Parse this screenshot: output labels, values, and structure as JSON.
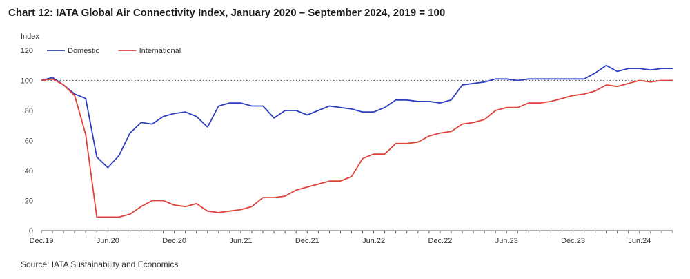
{
  "title": "Chart 12: IATA Global Air Connectivity Index, January 2020 – September 2024, 2019 = 100",
  "source": "Source: IATA Sustainability and Economics",
  "chart_data": {
    "type": "line",
    "ylabel": "Index",
    "ylim": [
      0,
      120
    ],
    "yticks": [
      0,
      20,
      40,
      60,
      80,
      100,
      120
    ],
    "x_range": [
      "Dec.19",
      "Sep.24"
    ],
    "xtick_labels": [
      "Dec.19",
      "Jun.20",
      "Dec.20",
      "Jun.21",
      "Dec.21",
      "Jun.22",
      "Dec.22",
      "Jun.23",
      "Dec.23",
      "Jun.24"
    ],
    "reference_line": {
      "value": 100,
      "style": "dotted"
    },
    "legend_position": "top-left",
    "grid": false,
    "x": [
      "Dec.19",
      "Jan.20",
      "Feb.20",
      "Mar.20",
      "Apr.20",
      "May.20",
      "Jun.20",
      "Jul.20",
      "Aug.20",
      "Sep.20",
      "Oct.20",
      "Nov.20",
      "Dec.20",
      "Jan.21",
      "Feb.21",
      "Mar.21",
      "Apr.21",
      "May.21",
      "Jun.21",
      "Jul.21",
      "Aug.21",
      "Sep.21",
      "Oct.21",
      "Nov.21",
      "Dec.21",
      "Jan.22",
      "Feb.22",
      "Mar.22",
      "Apr.22",
      "May.22",
      "Jun.22",
      "Jul.22",
      "Aug.22",
      "Sep.22",
      "Oct.22",
      "Nov.22",
      "Dec.22",
      "Jan.23",
      "Feb.23",
      "Mar.23",
      "Apr.23",
      "May.23",
      "Jun.23",
      "Jul.23",
      "Aug.23",
      "Sep.23",
      "Oct.23",
      "Nov.23",
      "Dec.23",
      "Jan.24",
      "Feb.24",
      "Mar.24",
      "Apr.24",
      "May.24",
      "Jun.24",
      "Jul.24",
      "Aug.24",
      "Sep.24"
    ],
    "series": [
      {
        "name": "Domestic",
        "color": "#2b3fbf",
        "values": [
          100,
          102,
          97,
          91,
          88,
          49,
          42,
          50,
          65,
          72,
          71,
          76,
          78,
          79,
          76,
          69,
          83,
          85,
          85,
          83,
          83,
          75,
          80,
          80,
          77,
          80,
          83,
          82,
          81,
          79,
          79,
          82,
          87,
          87,
          86,
          86,
          85,
          87,
          97,
          98,
          99,
          101,
          101,
          100,
          101,
          101,
          101,
          101,
          101,
          101,
          105,
          110,
          106,
          108,
          108,
          107,
          108,
          108
        ]
      },
      {
        "name": "International",
        "color": "#e0413a",
        "values": [
          100,
          101,
          97,
          90,
          64,
          9,
          9,
          9,
          11,
          16,
          20,
          20,
          17,
          16,
          18,
          13,
          12,
          13,
          14,
          16,
          22,
          22,
          23,
          27,
          29,
          31,
          33,
          33,
          36,
          48,
          51,
          51,
          58,
          58,
          59,
          63,
          65,
          66,
          71,
          72,
          74,
          80,
          82,
          82,
          85,
          85,
          86,
          88,
          90,
          91,
          93,
          97,
          96,
          98,
          100,
          99,
          100,
          100
        ]
      }
    ]
  }
}
